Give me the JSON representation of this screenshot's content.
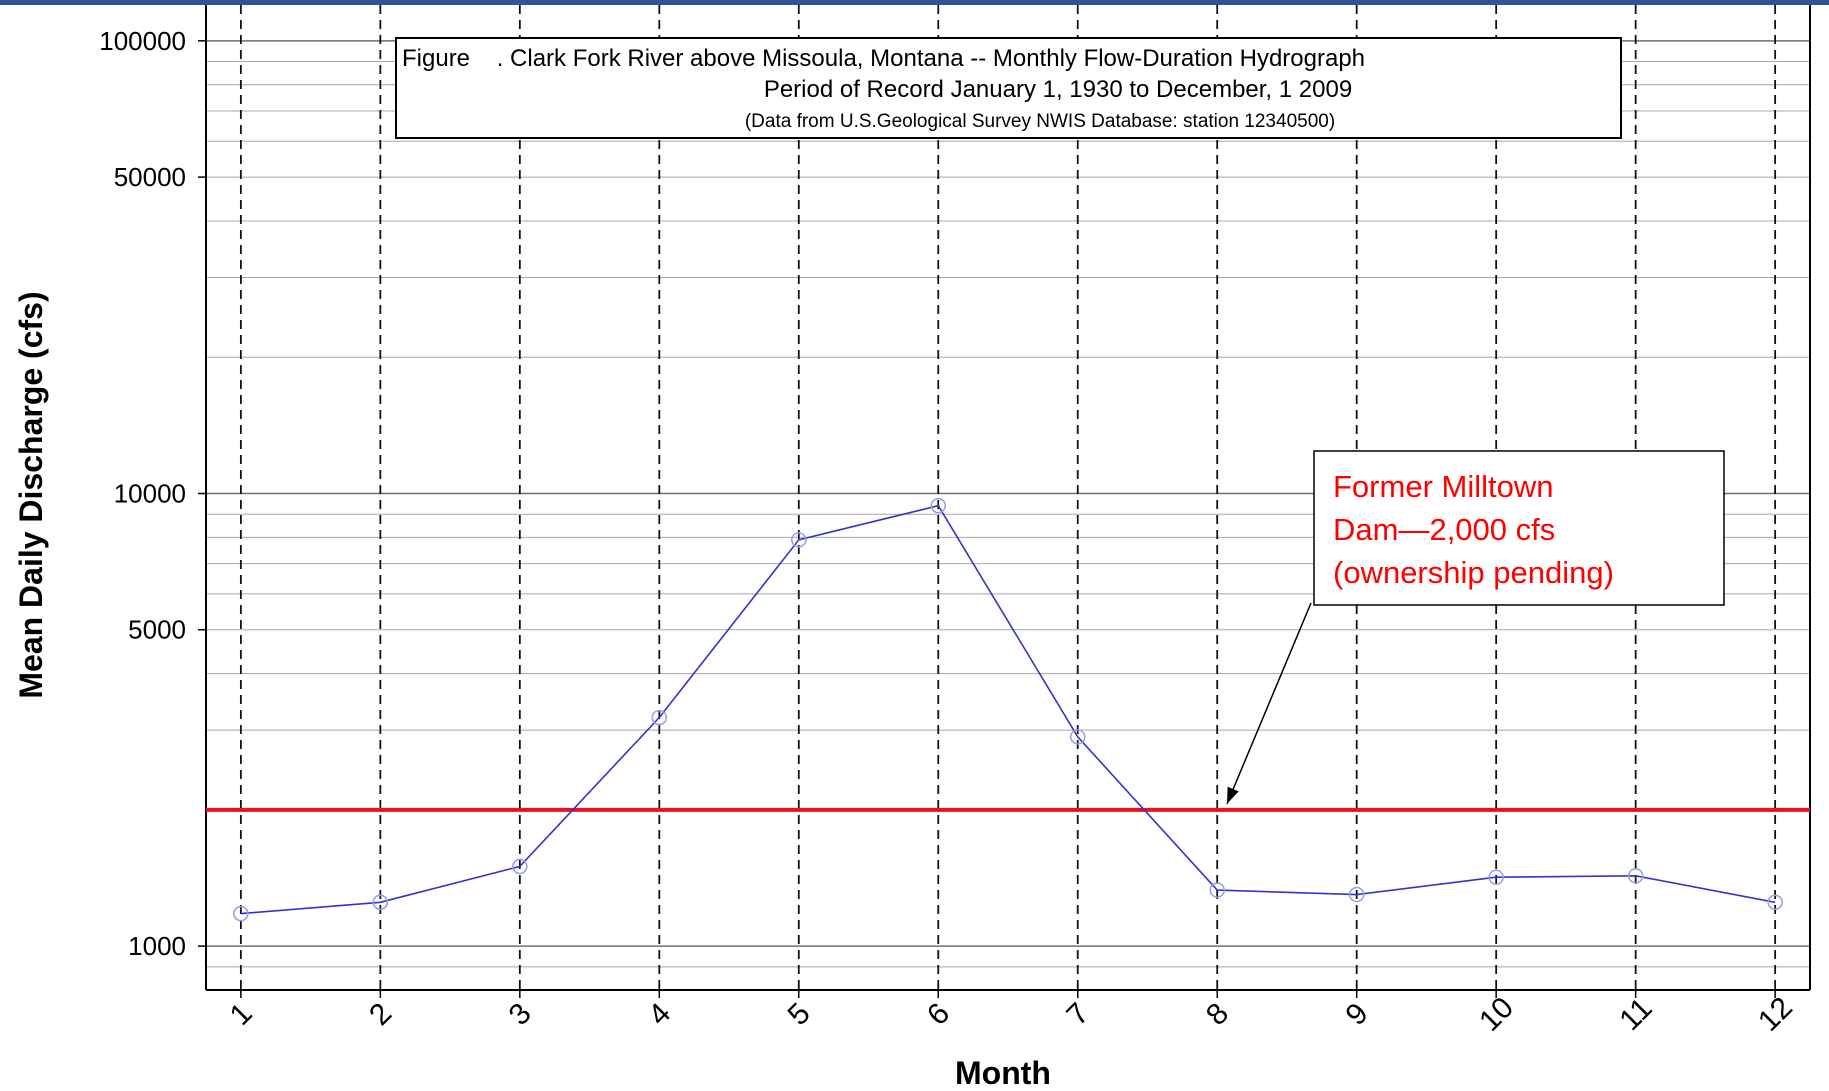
{
  "header_bar_color": "#2e5597",
  "chart_data": {
    "type": "line",
    "title_lines": [
      "Figure    . Clark Fork River above Missoula, Montana -- Monthly Flow-Duration Hydrograph",
      "Period of Record January 1, 1930 to December, 1 2009",
      "(Data from U.S.Geological Survey NWIS Database: station 12340500)"
    ],
    "xlabel": "Month",
    "ylabel": "Mean Daily Discharge (cfs)",
    "y_scale": "log",
    "ylim": [
      800,
      120000
    ],
    "xlim": [
      0.75,
      12.25
    ],
    "x_ticks": [
      "1",
      "2",
      "3",
      "4",
      "5",
      "6",
      "7",
      "8",
      "9",
      "10",
      "11",
      "12"
    ],
    "y_ticks": [
      {
        "value": 1000,
        "label": "1000"
      },
      {
        "value": 5000,
        "label": "5000"
      },
      {
        "value": 10000,
        "label": "10000"
      },
      {
        "value": 50000,
        "label": "50000"
      },
      {
        "value": 100000,
        "label": "100000"
      }
    ],
    "grid": true,
    "x": [
      1,
      2,
      3,
      4,
      5,
      6,
      7,
      8,
      9,
      10,
      11,
      12
    ],
    "series": [
      {
        "values": [
          1180,
          1250,
          1500,
          3200,
          7900,
          9400,
          2900,
          1330,
          1300,
          1420,
          1430,
          1250
        ],
        "color": "#3333cc",
        "marker": "open-circle"
      }
    ],
    "reference_line": {
      "value": 2000,
      "color": "#e8121e"
    },
    "annotation": {
      "lines": [
        "Former Milltown",
        "Dam—2,000 cfs",
        "(ownership pending)"
      ],
      "color": "#ff0000",
      "arrow_target_x": 8.07
    }
  }
}
